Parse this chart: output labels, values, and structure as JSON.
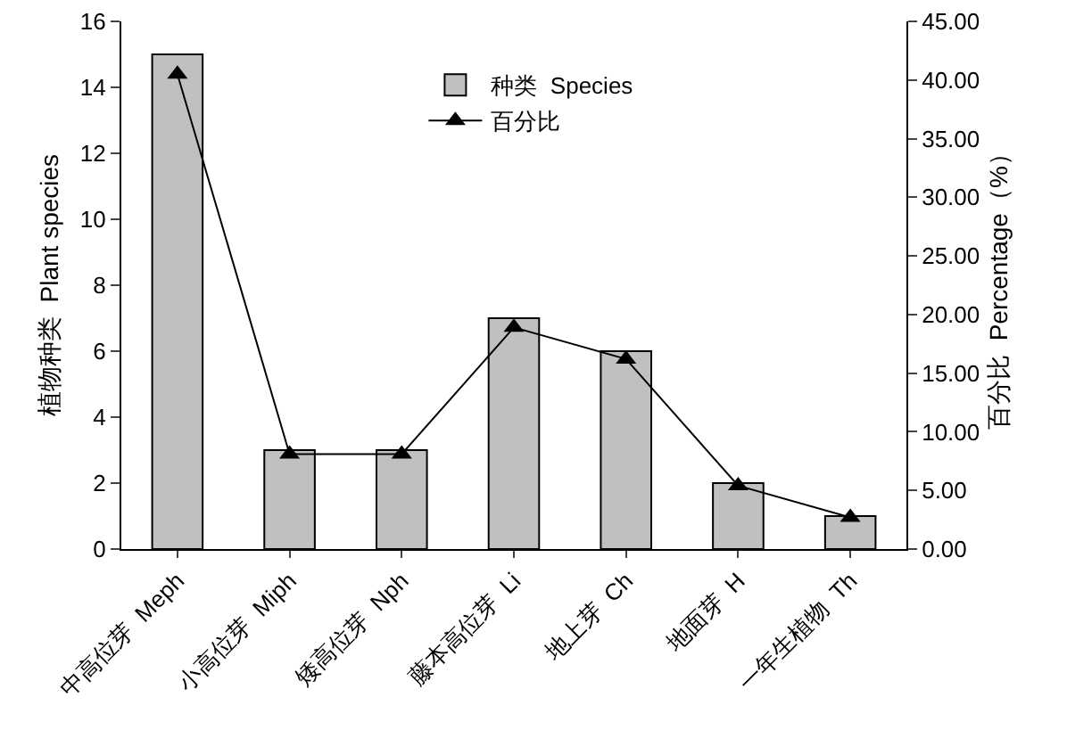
{
  "chart_data": {
    "type": "bar",
    "categories": [
      "中高位芽  Meph",
      "小高位芽  Miph",
      "矮高位芽  Nph",
      "藤本高位芽  Li",
      "地上芽  Ch",
      "地面芽  H",
      "一年生植物  Th"
    ],
    "series": [
      {
        "name": "种类  Species",
        "color": "#c0c0c0",
        "values": [
          15,
          3,
          3,
          7,
          6,
          2,
          1
        ]
      },
      {
        "name": "百分比",
        "type": "line",
        "axis": "y2",
        "color": "#000000",
        "values": [
          40.5,
          8.1,
          8.1,
          18.9,
          16.2,
          5.4,
          2.7
        ]
      }
    ],
    "ylabel": "植物种类  Plant species",
    "y2label": "百分比  Percentage（%）",
    "ylim": [
      0,
      16
    ],
    "yticks": [
      0,
      2,
      4,
      6,
      8,
      10,
      12,
      14,
      16
    ],
    "y2lim": [
      0,
      45
    ],
    "y2ticks": [
      {
        "value": 0,
        "label": "0.00"
      },
      {
        "value": 5,
        "label": "5.00"
      },
      {
        "value": 10,
        "label": "10.00"
      },
      {
        "value": 15,
        "label": "15.00"
      },
      {
        "value": 20,
        "label": "20.00"
      },
      {
        "value": 25,
        "label": "25.00"
      },
      {
        "value": 30,
        "label": "30.00"
      },
      {
        "value": 35,
        "label": "35.00"
      },
      {
        "value": 40,
        "label": "40.00"
      },
      {
        "value": 45,
        "label": "45.00"
      }
    ],
    "grid": false,
    "legend": "top",
    "marker": "triangle",
    "line_style": "solid"
  }
}
